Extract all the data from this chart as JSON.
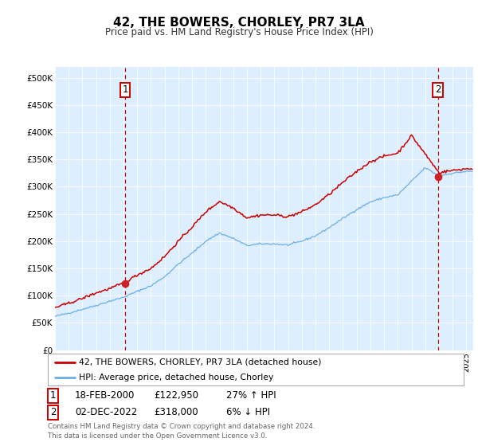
{
  "title": "42, THE BOWERS, CHORLEY, PR7 3LA",
  "subtitle": "Price paid vs. HM Land Registry's House Price Index (HPI)",
  "plot_bg_color": "#ddeeff",
  "legend_line1": "42, THE BOWERS, CHORLEY, PR7 3LA (detached house)",
  "legend_line2": "HPI: Average price, detached house, Chorley",
  "footnote": "Contains HM Land Registry data © Crown copyright and database right 2024.\nThis data is licensed under the Open Government Licence v3.0.",
  "sale1_date": "18-FEB-2000",
  "sale1_price": 122950,
  "sale1_hpi": "27% ↑ HPI",
  "sale2_date": "02-DEC-2022",
  "sale2_price": 318000,
  "sale2_hpi": "6% ↓ HPI",
  "yticks": [
    0,
    50000,
    100000,
    150000,
    200000,
    250000,
    300000,
    350000,
    400000,
    450000,
    500000
  ],
  "ylabels": [
    "£0",
    "£50K",
    "£100K",
    "£150K",
    "£200K",
    "£250K",
    "£300K",
    "£350K",
    "£400K",
    "£450K",
    "£500K"
  ],
  "xlim_start": 1995.0,
  "xlim_end": 2025.5,
  "ylim": [
    0,
    520000
  ],
  "sale1_x": 2000.12,
  "sale2_x": 2022.92,
  "red_color": "#cc0000",
  "blue_color": "#6aaee8",
  "marker_red": "#cc2222",
  "hpi_anchors_x": [
    1995,
    1996,
    1997,
    1998,
    1999,
    2000,
    2001,
    2002,
    2003,
    2004,
    2005,
    2006,
    2007,
    2008,
    2009,
    2010,
    2011,
    2012,
    2013,
    2014,
    2015,
    2016,
    2017,
    2018,
    2019,
    2020,
    2021,
    2022,
    2023,
    2024,
    2025
  ],
  "hpi_anchors_y": [
    62000,
    68000,
    75000,
    82000,
    90000,
    97000,
    108000,
    118000,
    135000,
    158000,
    178000,
    200000,
    215000,
    205000,
    192000,
    195000,
    195000,
    193000,
    200000,
    210000,
    225000,
    242000,
    258000,
    272000,
    280000,
    285000,
    310000,
    335000,
    320000,
    325000,
    328000
  ],
  "pp_anchors_x": [
    1995,
    1996,
    1997,
    1998,
    1999,
    2000,
    2001,
    2002,
    2003,
    2004,
    2005,
    2006,
    2007,
    2008,
    2009,
    2010,
    2011,
    2012,
    2013,
    2014,
    2015,
    2016,
    2017,
    2018,
    2019,
    2020,
    2021,
    2022,
    2023,
    2024,
    2025
  ],
  "pp_anchors_y": [
    78000,
    86000,
    95000,
    105000,
    113000,
    123000,
    138000,
    150000,
    172000,
    200000,
    226000,
    254000,
    273000,
    261000,
    243000,
    248000,
    248000,
    245000,
    254000,
    267000,
    286000,
    308000,
    328000,
    346000,
    356000,
    362000,
    394000,
    360000,
    326000,
    330000,
    333000
  ],
  "noise_seed": 42,
  "hpi_noise": 800,
  "pp_noise": 1200
}
